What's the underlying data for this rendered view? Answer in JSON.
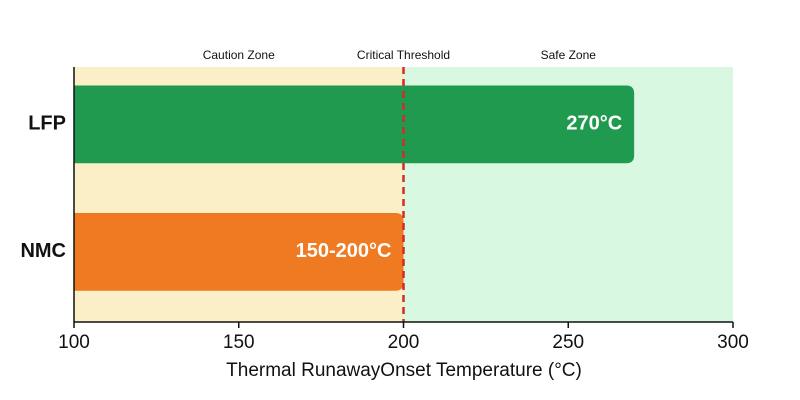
{
  "chart_data": {
    "type": "hbar",
    "categories": [
      "LFP",
      "NMC"
    ],
    "values": [
      270,
      200
    ],
    "value_labels": [
      "270°C",
      "150-200°C"
    ],
    "colors": [
      "#1f9a4f",
      "#ef7a21"
    ],
    "xlim": [
      100,
      300
    ],
    "xticks": [
      100,
      150,
      200,
      250,
      300
    ],
    "xlabel": "Thermal RunawayOnset Temperature (°C)",
    "zones": [
      {
        "label": "Caution Zone",
        "from": 100,
        "to": 200,
        "color": "#fbefc8"
      },
      {
        "label": "Safe Zone",
        "from": 200,
        "to": 300,
        "color": "#d9f8e1"
      }
    ],
    "threshold": {
      "label": "Critical Threshold",
      "value": 200,
      "color": "#d42a2a"
    }
  }
}
